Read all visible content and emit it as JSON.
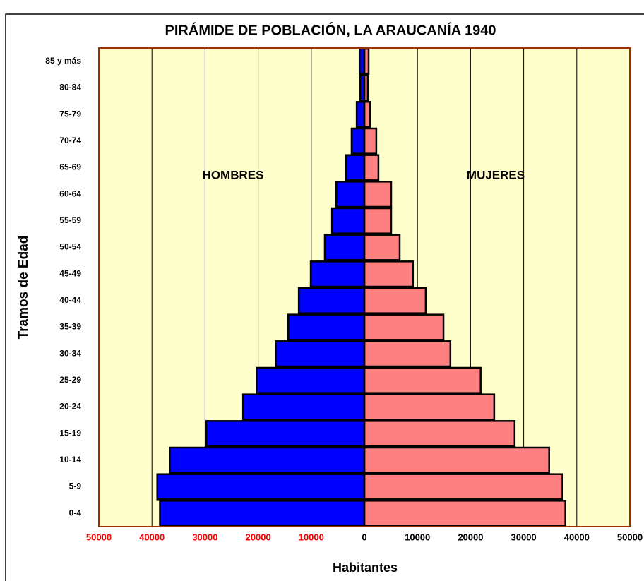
{
  "chart_data": {
    "type": "pyramid",
    "title": "PIRÁMIDE DE POBLACIÓN, LA ARAUCANÍA 1940",
    "x_label": "Habitantes",
    "y_label": "Tramos de Edad",
    "annotations": [
      "HOMBRES",
      "MUJERES"
    ],
    "categories": [
      "0-4",
      "5-9",
      "10-14",
      "15-19",
      "20-24",
      "25-29",
      "30-34",
      "35-39",
      "40-44",
      "45-49",
      "50-54",
      "55-59",
      "60-64",
      "65-69",
      "70-74",
      "75-79",
      "80-84",
      "85 y más"
    ],
    "series": [
      {
        "name": "HOMBRES",
        "color": "#0000ff",
        "side": "left",
        "values": [
          38500,
          39000,
          36650,
          29750,
          22850,
          20300,
          16700,
          14350,
          12350,
          10100,
          7450,
          6100,
          5300,
          3450,
          2400,
          1450,
          800,
          900
        ]
      },
      {
        "name": "MUJERES",
        "color": "#ff8080",
        "side": "right",
        "values": [
          37850,
          37300,
          34800,
          28300,
          24450,
          21900,
          16200,
          14900,
          11550,
          9150,
          6650,
          5050,
          5050,
          2650,
          2250,
          1050,
          650,
          800
        ]
      }
    ],
    "xlim": [
      -50000,
      50000
    ],
    "xticks": [
      {
        "value": -50000,
        "label": "50000"
      },
      {
        "value": -40000,
        "label": "40000"
      },
      {
        "value": -30000,
        "label": "30000"
      },
      {
        "value": -20000,
        "label": "20000"
      },
      {
        "value": -10000,
        "label": "10000"
      },
      0,
      10000,
      20000,
      30000,
      40000,
      50000
    ],
    "negative_tick_color": "#ff0000",
    "grid": true,
    "background": "#ffffcc"
  }
}
